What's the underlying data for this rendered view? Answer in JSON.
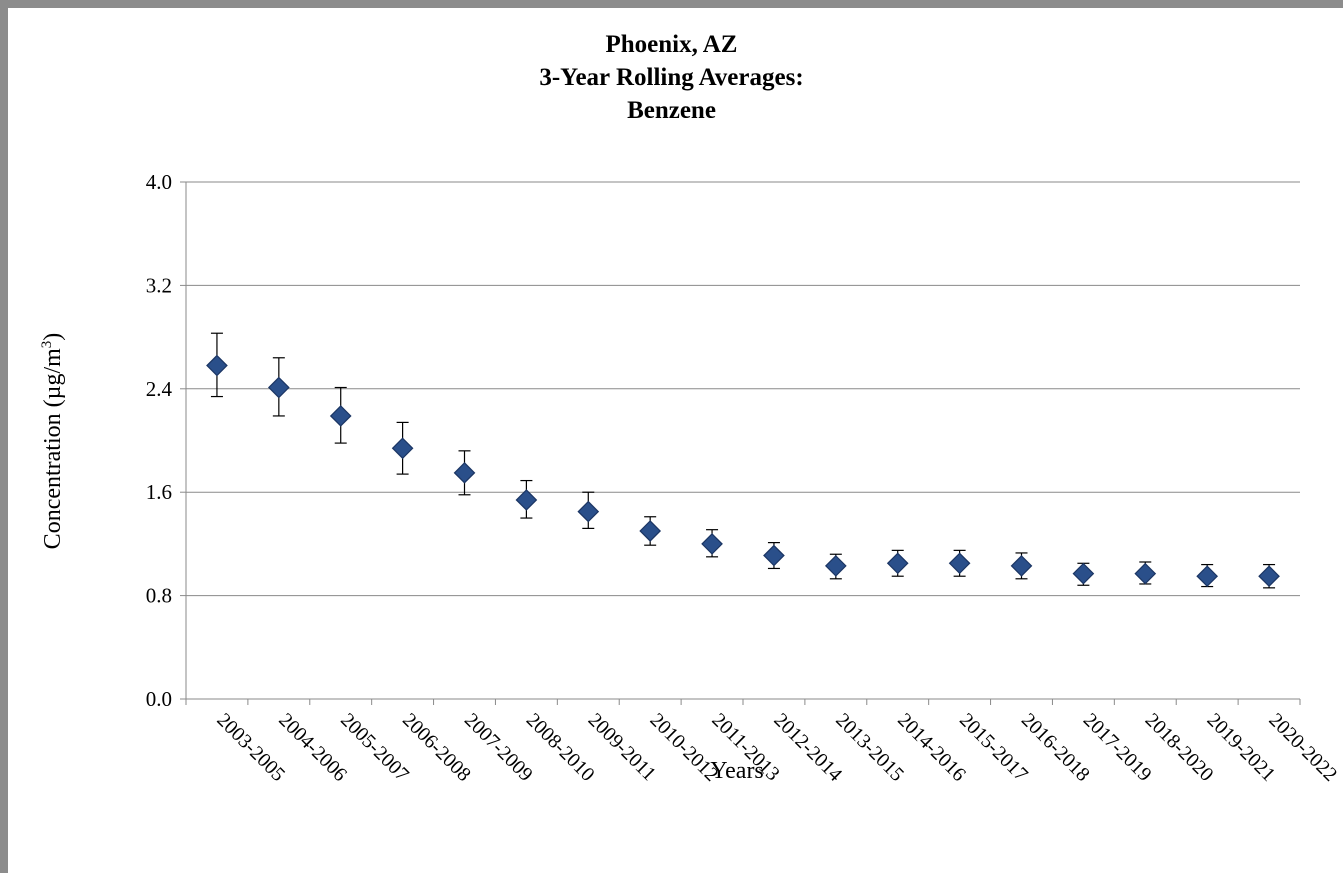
{
  "chart_data": {
    "type": "scatter",
    "title": [
      "Phoenix, AZ",
      "3-Year Rolling Averages:",
      "Benzene"
    ],
    "xlabel": "Years",
    "ylabel": "Concentration (µg/m",
    "ylabel_superscript": "3",
    "ylabel_suffix": ")",
    "ylim": [
      0,
      4
    ],
    "yticks": [
      "0.0",
      "0.8",
      "1.6",
      "2.4",
      "3.2",
      "4.0"
    ],
    "grid": true,
    "legend": "none",
    "marker": "diamond",
    "marker_color": "#2a4f8a",
    "categories": [
      "2003-2005",
      "2004-2006",
      "2005-2007",
      "2006-2008",
      "2007-2009",
      "2008-2010",
      "2009-2011",
      "2010-2012",
      "2011-2013",
      "2012-2014",
      "2013-2015",
      "2014-2016",
      "2015-2017",
      "2016-2018",
      "2017-2019",
      "2018-2020",
      "2019-2021",
      "2020-2022"
    ],
    "values": [
      2.58,
      2.41,
      2.19,
      1.94,
      1.75,
      1.54,
      1.45,
      1.3,
      1.2,
      1.11,
      1.03,
      1.05,
      1.05,
      1.03,
      0.97,
      0.97,
      0.95,
      0.95
    ],
    "error_upper": [
      2.83,
      2.64,
      2.41,
      2.14,
      1.92,
      1.69,
      1.6,
      1.41,
      1.31,
      1.21,
      1.12,
      1.15,
      1.15,
      1.13,
      1.05,
      1.06,
      1.04,
      1.04
    ],
    "error_lower": [
      2.34,
      2.19,
      1.98,
      1.74,
      1.58,
      1.4,
      1.32,
      1.19,
      1.1,
      1.01,
      0.93,
      0.95,
      0.95,
      0.93,
      0.88,
      0.89,
      0.87,
      0.86
    ]
  }
}
